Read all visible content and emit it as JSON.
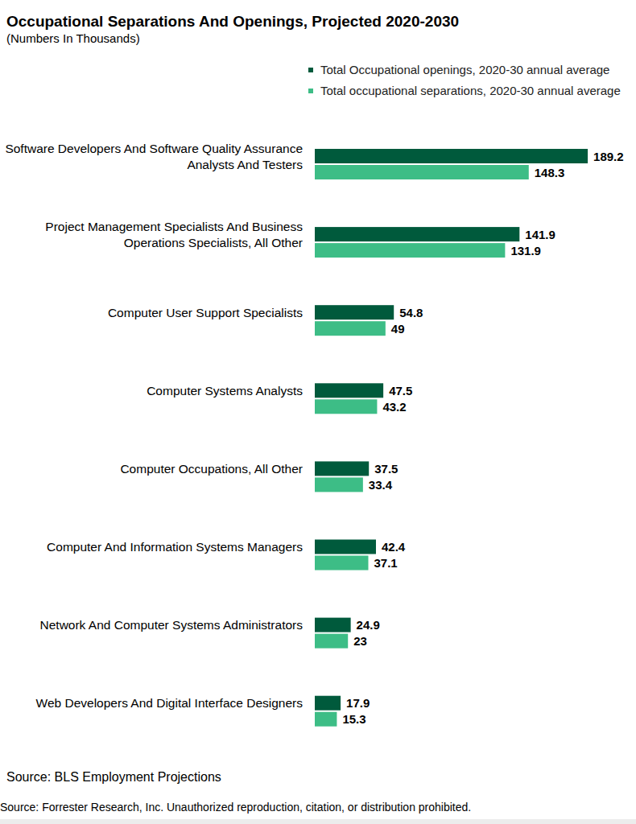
{
  "chart_data": {
    "type": "bar",
    "orientation": "horizontal",
    "title": "Occupational Separations And Openings, Projected 2020-2030",
    "subtitle": "(Numbers In Thousands)",
    "categories": [
      "Software Developers And Software Quality Assurance Analysts And Testers",
      "Project Management Specialists And Business Operations Specialists, All Other",
      "Computer User Support Specialists",
      "Computer Systems Analysts",
      "Computer Occupations, All Other",
      "Computer And Information Systems Managers",
      "Network And Computer Systems Administrators",
      "Web Developers And Digital Interface Designers"
    ],
    "series": [
      {
        "name": "Total Occupational openings, 2020-30 annual average",
        "color": "#005a3c",
        "values": [
          189.2,
          141.9,
          54.8,
          47.5,
          37.5,
          42.4,
          24.9,
          17.9
        ]
      },
      {
        "name": "Total occupational separations, 2020-30 annual average",
        "color": "#3dbd86",
        "values": [
          148.3,
          131.9,
          49,
          43.2,
          33.4,
          37.1,
          23,
          15.3
        ]
      }
    ],
    "xlim": [
      0,
      190
    ],
    "data_labels": true,
    "tick_labels": false,
    "legend": "top",
    "annotations": [
      "Source: BLS Employment Projections",
      "Source: Forrester Research, Inc. Unauthorized reproduction, citation, or distribution prohibited."
    ]
  }
}
